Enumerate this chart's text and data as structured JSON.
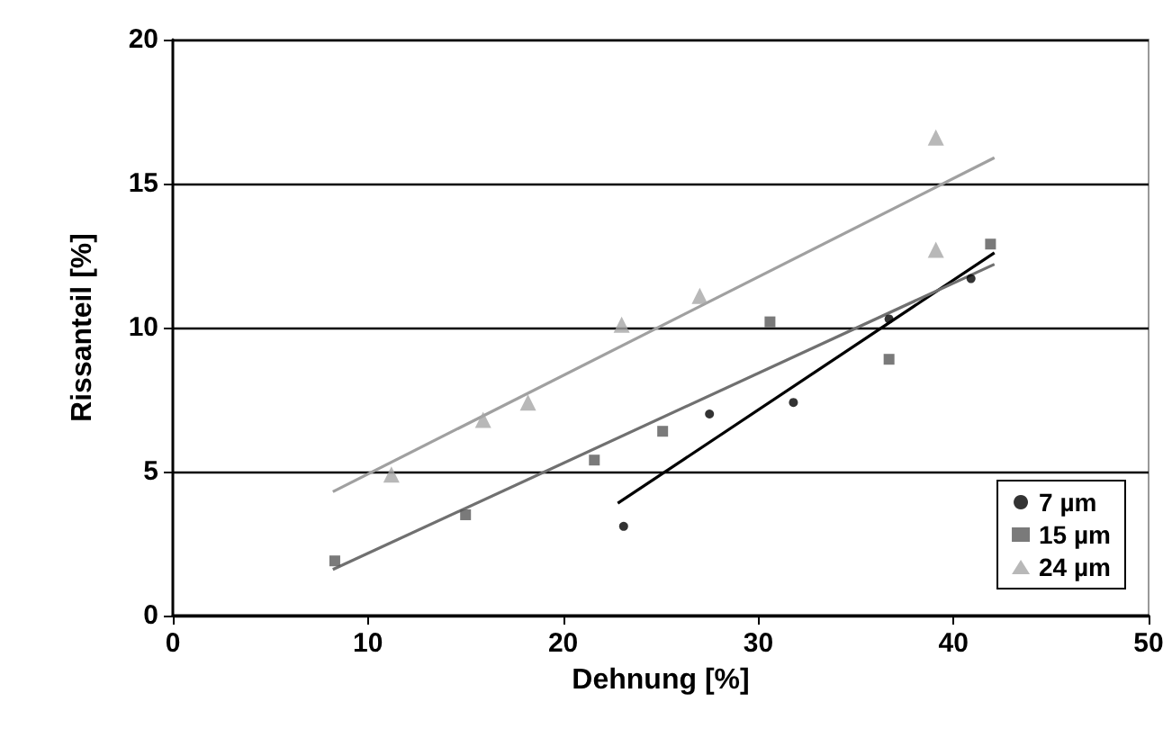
{
  "chart_data": {
    "type": "scatter",
    "xlabel": "Dehnung [%]",
    "ylabel": "Rissanteil [%]",
    "xlim": [
      0,
      50
    ],
    "xticks": [
      0,
      10,
      20,
      30,
      40,
      50
    ],
    "ylim": [
      0,
      20
    ],
    "yticks": [
      0,
      5,
      10,
      15,
      20
    ],
    "grid": "y",
    "legend": "bottom right",
    "series": [
      {
        "name": "7 µm",
        "color": "#000000",
        "marker": "circle",
        "x": [
          23.1,
          27.5,
          31.8,
          36.7,
          40.9
        ],
        "values": [
          3.1,
          7.0,
          7.4,
          10.3,
          11.7
        ]
      },
      {
        "name": "15 µm",
        "color": "#595959",
        "marker": "square",
        "x": [
          8.3,
          15.0,
          21.6,
          25.1,
          30.6,
          36.7,
          41.9
        ],
        "values": [
          1.9,
          3.5,
          5.4,
          6.4,
          10.2,
          8.9,
          12.9
        ]
      },
      {
        "name": "24 µm",
        "color": "#a6a6a6",
        "marker": "triangle",
        "x": [
          11.2,
          15.9,
          18.2,
          23.0,
          27.0,
          39.1,
          39.1
        ],
        "values": [
          4.9,
          6.8,
          7.4,
          10.1,
          11.1,
          12.7,
          16.6
        ]
      },
      {
        "type": "line",
        "color": "#000000",
        "marker": "none",
        "x": [
          22.8,
          42.1
        ],
        "values": [
          3.9,
          12.6
        ]
      },
      {
        "type": "line",
        "color": "#707070",
        "marker": "none",
        "x": [
          8.2,
          42.1
        ],
        "values": [
          1.6,
          12.2
        ]
      },
      {
        "type": "line",
        "color": "#a0a0a0",
        "marker": "none",
        "x": [
          8.2,
          42.1
        ],
        "values": [
          4.3,
          15.9
        ]
      }
    ]
  }
}
